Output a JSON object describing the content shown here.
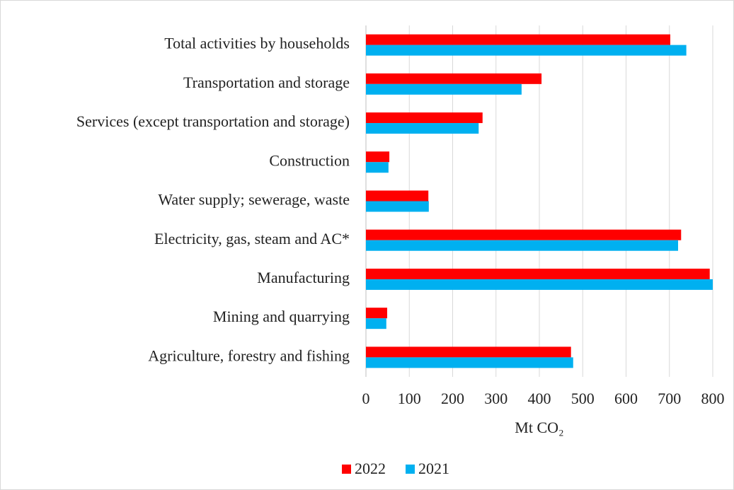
{
  "chart_data": {
    "type": "hbar",
    "categories": [
      "Total activities by households",
      "Transportation and storage",
      "Services (except transportation and storage)",
      "Construction",
      "Water supply; sewerage, waste",
      "Electricity, gas, steam and AC*",
      "Manufacturing",
      "Mining and quarrying",
      "Agriculture, forestry and fishing"
    ],
    "series": [
      {
        "name": "2022",
        "color": "#ff0000",
        "values": [
          702,
          405,
          269,
          54,
          144,
          727,
          793,
          49,
          473
        ]
      },
      {
        "name": "2021",
        "color": "#00b0f0",
        "values": [
          739,
          359,
          260,
          52,
          145,
          720,
          800,
          47,
          478
        ]
      }
    ],
    "x_label": "Mt CO₂",
    "xlim": [
      0,
      800
    ],
    "xticks": [
      0,
      100,
      200,
      300,
      400,
      500,
      600,
      700,
      800
    ],
    "grid": true,
    "legend": "bottom"
  }
}
